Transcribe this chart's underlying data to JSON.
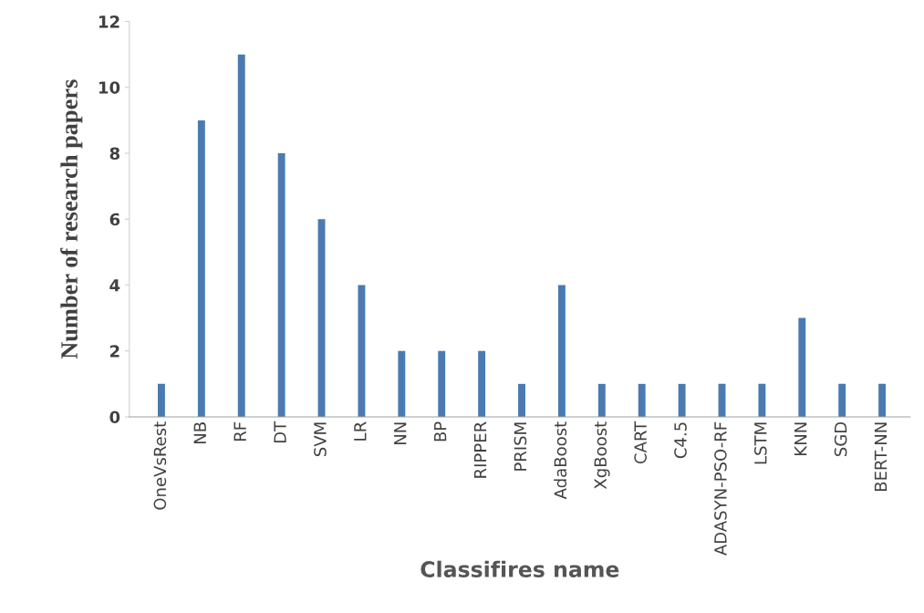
{
  "chart_data": {
    "type": "bar",
    "xlabel": "Classifires name",
    "ylabel": "Number of research papers",
    "categories": [
      "OneVsRest",
      "NB",
      "RF",
      "DT",
      "SVM",
      "LR",
      "NN",
      "BP",
      "RIPPER",
      "PRISM",
      "AdaBoost",
      "XgBoost",
      "CART",
      "C4.5",
      "ADASYN-PSO-RF",
      "LSTM",
      "KNN",
      "SGD",
      "BERT-NN"
    ],
    "values": [
      1,
      9,
      11,
      8,
      6,
      4,
      2,
      2,
      2,
      1,
      4,
      1,
      1,
      1,
      1,
      1,
      3,
      1,
      1
    ],
    "color": "#4a7ab0",
    "ylim": [
      0,
      12
    ],
    "yticks": [
      0,
      2,
      4,
      6,
      8,
      10,
      12
    ],
    "grid": false
  }
}
